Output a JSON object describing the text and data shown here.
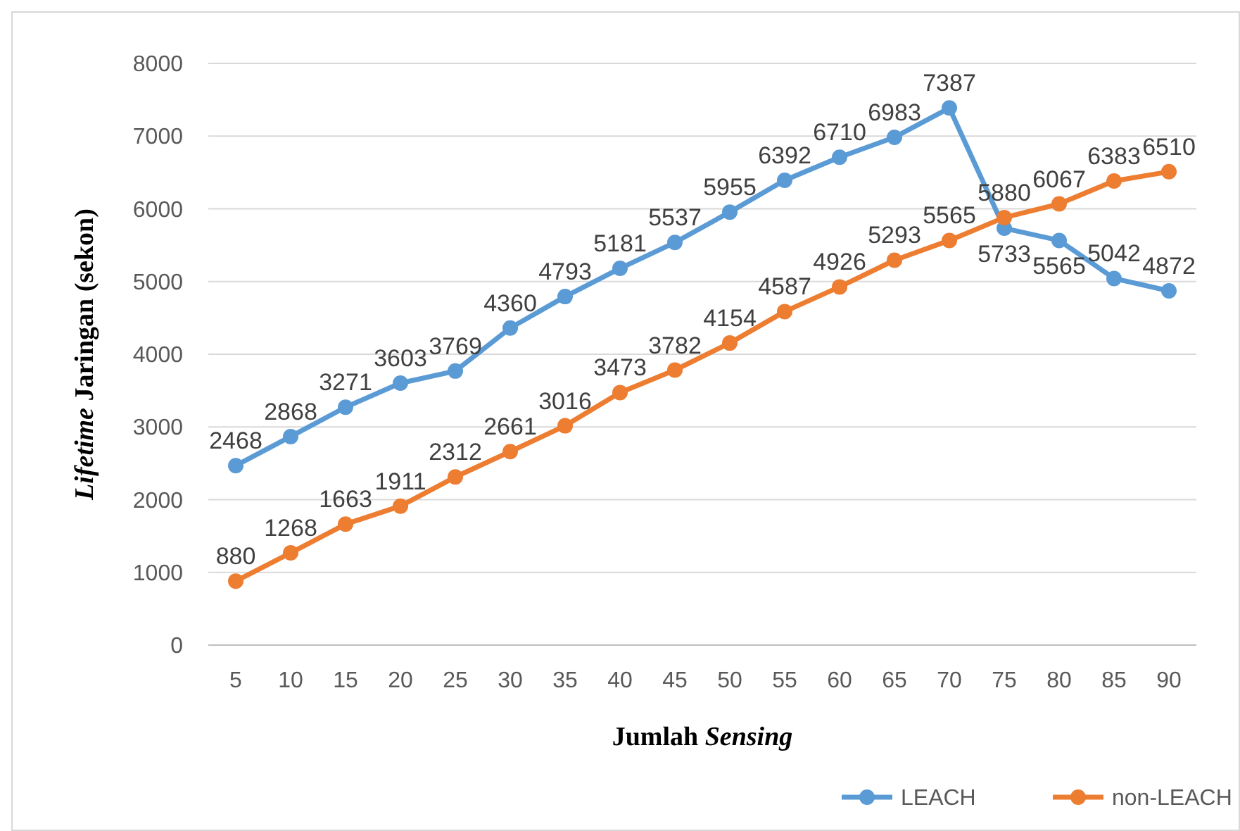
{
  "chart_data": {
    "type": "line",
    "xlabel": "Jumlah Sensing",
    "ylabel": "Lifetime Jaringan (sekon)",
    "categories": [
      "5",
      "10",
      "15",
      "20",
      "25",
      "30",
      "35",
      "40",
      "45",
      "50",
      "55",
      "60",
      "65",
      "70",
      "75",
      "80",
      "85",
      "90"
    ],
    "series": [
      {
        "name": "LEACH",
        "color": "#5b9bd5",
        "values": [
          2468,
          2868,
          3271,
          3603,
          3769,
          4360,
          4793,
          5181,
          5537,
          5955,
          6392,
          6710,
          6983,
          7387,
          5733,
          5565,
          5042,
          4872
        ]
      },
      {
        "name": "non-LEACH",
        "color": "#ed7d31",
        "values": [
          880,
          1268,
          1663,
          1911,
          2312,
          2661,
          3016,
          3473,
          3782,
          4154,
          4587,
          4926,
          5293,
          5565,
          5880,
          6067,
          6383,
          6510
        ]
      }
    ],
    "ylim": [
      0,
      8000
    ],
    "yticks": [
      0,
      1000,
      2000,
      3000,
      4000,
      5000,
      6000,
      7000,
      8000
    ],
    "grid": "y",
    "legend": "bottom right",
    "marker": "circle",
    "data_labels": true
  }
}
